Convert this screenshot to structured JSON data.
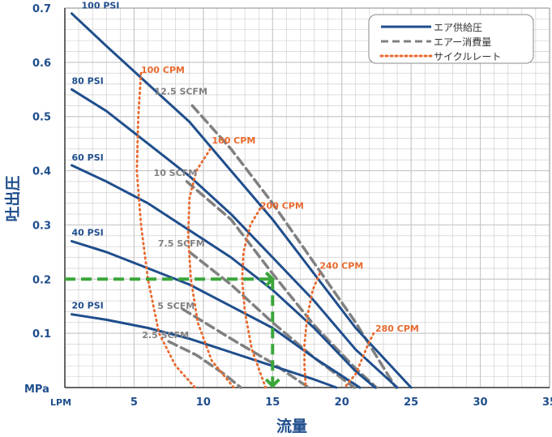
{
  "chart_data": {
    "type": "line",
    "xlabel": "流量",
    "ylabel": "吐出圧",
    "x_unit": "LPM",
    "y_unit": "MPa",
    "xlim": [
      0,
      35
    ],
    "ylim": [
      0,
      0.7
    ],
    "x_ticks": [
      "5",
      "10",
      "15",
      "20",
      "25",
      "30",
      "35"
    ],
    "y_ticks": [
      "0.1",
      "0.2",
      "0.3",
      "0.4",
      "0.5",
      "0.6",
      "0.7"
    ],
    "grid": true,
    "legend_position": "top-right",
    "legend": [
      {
        "label": "エア供給圧",
        "style": "solid",
        "color": "#1f4e8c"
      },
      {
        "label": "エアー消費量",
        "style": "dashed",
        "color": "#808080"
      },
      {
        "label": "サイクルレート",
        "style": "dotted",
        "color": "#e8692e"
      }
    ],
    "colors": {
      "supply": "#1f4e8c",
      "consumption": "#808080",
      "cycle": "#e8692e",
      "example": "#3aa63a",
      "grid": "#c8c8c8"
    },
    "supply_pressure": [
      {
        "name": "100 PSI",
        "points": [
          [
            0.5,
            0.69
          ],
          [
            3,
            0.63
          ],
          [
            6,
            0.56
          ],
          [
            9,
            0.49
          ],
          [
            12,
            0.4
          ],
          [
            15,
            0.31
          ],
          [
            18,
            0.21
          ],
          [
            21,
            0.11
          ],
          [
            25,
            0.0
          ]
        ]
      },
      {
        "name": "80 PSI",
        "points": [
          [
            0.5,
            0.55
          ],
          [
            3,
            0.51
          ],
          [
            6,
            0.45
          ],
          [
            9,
            0.39
          ],
          [
            12,
            0.32
          ],
          [
            15,
            0.24
          ],
          [
            18,
            0.16
          ],
          [
            21,
            0.07
          ],
          [
            24,
            0.0
          ]
        ]
      },
      {
        "name": "60 PSI",
        "points": [
          [
            0.5,
            0.41
          ],
          [
            3,
            0.38
          ],
          [
            6,
            0.34
          ],
          [
            9,
            0.29
          ],
          [
            12,
            0.24
          ],
          [
            15,
            0.18
          ],
          [
            18,
            0.11
          ],
          [
            21,
            0.03
          ],
          [
            22.4,
            0.0
          ]
        ]
      },
      {
        "name": "40 PSI",
        "points": [
          [
            0.5,
            0.27
          ],
          [
            3,
            0.25
          ],
          [
            6,
            0.22
          ],
          [
            9,
            0.19
          ],
          [
            12,
            0.15
          ],
          [
            15,
            0.11
          ],
          [
            18,
            0.055
          ],
          [
            21.3,
            0.0
          ]
        ]
      },
      {
        "name": "20 PSI",
        "points": [
          [
            0.5,
            0.135
          ],
          [
            3,
            0.125
          ],
          [
            6,
            0.11
          ],
          [
            9,
            0.09
          ],
          [
            12,
            0.065
          ],
          [
            15,
            0.04
          ],
          [
            18,
            0.015
          ],
          [
            19.6,
            0.0
          ]
        ]
      }
    ],
    "air_consumption": [
      {
        "name": "12.5 SCFM",
        "points": [
          [
            9.2,
            0.52
          ],
          [
            12,
            0.44
          ],
          [
            15,
            0.34
          ],
          [
            18,
            0.23
          ],
          [
            21,
            0.12
          ],
          [
            23.9,
            0.0
          ]
        ]
      },
      {
        "name": "10 SCFM",
        "points": [
          [
            8.8,
            0.38
          ],
          [
            12,
            0.31
          ],
          [
            15,
            0.21
          ],
          [
            18,
            0.115
          ],
          [
            21,
            0.035
          ],
          [
            22.5,
            0.0
          ]
        ]
      },
      {
        "name": "7.5 SCFM",
        "points": [
          [
            9,
            0.25
          ],
          [
            12,
            0.19
          ],
          [
            15,
            0.12
          ],
          [
            18,
            0.055
          ],
          [
            20.9,
            0.0
          ]
        ]
      },
      {
        "name": "5 SCFM",
        "points": [
          [
            8.5,
            0.145
          ],
          [
            12,
            0.09
          ],
          [
            15,
            0.045
          ],
          [
            17.6,
            0.0
          ]
        ]
      },
      {
        "name": "2.5 SCFM",
        "points": [
          [
            7.5,
            0.085
          ],
          [
            9.5,
            0.06
          ],
          [
            11.5,
            0.025
          ],
          [
            12.7,
            0.0
          ]
        ]
      }
    ],
    "cycle_rate": [
      {
        "name": "100 CPM",
        "points": [
          [
            5.5,
            0.58
          ],
          [
            5.3,
            0.5
          ],
          [
            5.2,
            0.4
          ],
          [
            5.5,
            0.3
          ],
          [
            6,
            0.2
          ],
          [
            6.8,
            0.1
          ],
          [
            8,
            0.04
          ],
          [
            9.4,
            0.0
          ]
        ]
      },
      {
        "name": "160 CPM",
        "points": [
          [
            10.5,
            0.44
          ],
          [
            9.5,
            0.4
          ],
          [
            9,
            0.35
          ],
          [
            8.9,
            0.28
          ],
          [
            9.1,
            0.2
          ],
          [
            9.6,
            0.12
          ],
          [
            10.6,
            0.05
          ],
          [
            12.2,
            0.0
          ]
        ]
      },
      {
        "name": "200 CPM",
        "points": [
          [
            14.1,
            0.33
          ],
          [
            13.4,
            0.3
          ],
          [
            12.9,
            0.25
          ],
          [
            12.8,
            0.2
          ],
          [
            13,
            0.14
          ],
          [
            13.5,
            0.07
          ],
          [
            14.5,
            0.0
          ]
        ]
      },
      {
        "name": "240 CPM",
        "points": [
          [
            18.4,
            0.21
          ],
          [
            17.9,
            0.18
          ],
          [
            17.5,
            0.13
          ],
          [
            17.3,
            0.08
          ],
          [
            17.3,
            0.04
          ],
          [
            17.4,
            0.0
          ]
        ]
      },
      {
        "name": "280 CPM",
        "points": [
          [
            22.3,
            0.1
          ],
          [
            21.9,
            0.08
          ],
          [
            21.5,
            0.055
          ],
          [
            21,
            0.025
          ],
          [
            20.2,
            0.0
          ]
        ]
      }
    ],
    "example_reading": {
      "x": 15,
      "y": 0.2
    }
  }
}
